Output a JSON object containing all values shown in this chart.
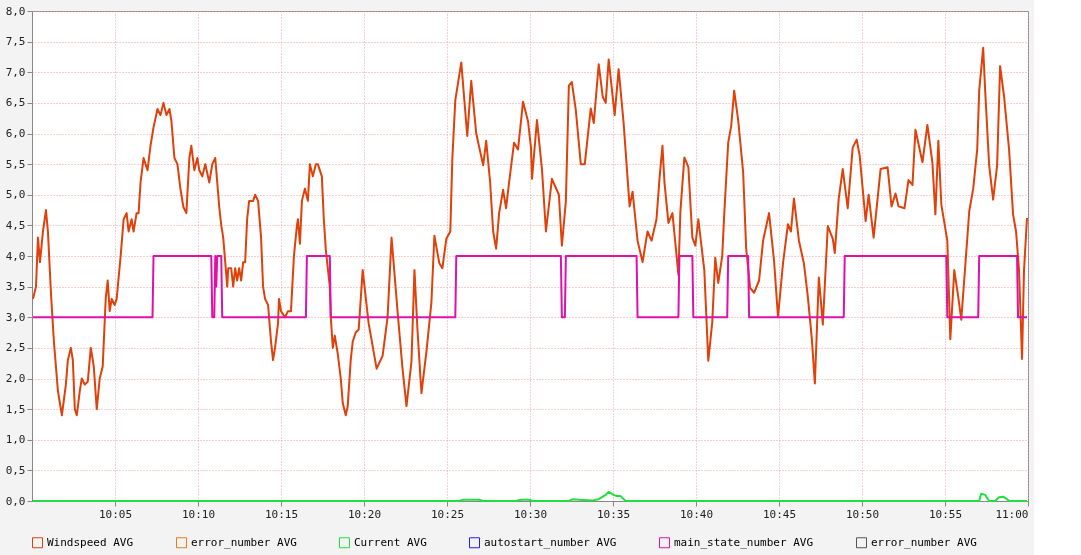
{
  "chart_data": {
    "type": "line",
    "xlim": [
      10.0,
      11.0
    ],
    "xticks": [
      {
        "value": 10.0833,
        "label": "10:05"
      },
      {
        "value": 10.1667,
        "label": "10:10"
      },
      {
        "value": 10.25,
        "label": "10:15"
      },
      {
        "value": 10.3333,
        "label": "10:20"
      },
      {
        "value": 10.4167,
        "label": "10:25"
      },
      {
        "value": 10.5,
        "label": "10:30"
      },
      {
        "value": 10.5833,
        "label": "10:35"
      },
      {
        "value": 10.6667,
        "label": "10:40"
      },
      {
        "value": 10.75,
        "label": "10:45"
      },
      {
        "value": 10.8333,
        "label": "10:50"
      },
      {
        "value": 10.9167,
        "label": "10:55"
      },
      {
        "value": 11.0,
        "label": "11:00"
      }
    ],
    "ylim": [
      0,
      8
    ],
    "yticks": [
      {
        "value": 0,
        "label": "0,0"
      },
      {
        "value": 0.5,
        "label": "0,5"
      },
      {
        "value": 1,
        "label": "1,0"
      },
      {
        "value": 1.5,
        "label": "1,5"
      },
      {
        "value": 2,
        "label": "2,0"
      },
      {
        "value": 2.5,
        "label": "2,5"
      },
      {
        "value": 3,
        "label": "3,0"
      },
      {
        "value": 3.5,
        "label": "3,5"
      },
      {
        "value": 4,
        "label": "4,0"
      },
      {
        "value": 4.5,
        "label": "4,5"
      },
      {
        "value": 5,
        "label": "5,0"
      },
      {
        "value": 5.5,
        "label": "5,5"
      },
      {
        "value": 6,
        "label": "6,0"
      },
      {
        "value": 6.5,
        "label": "6,5"
      },
      {
        "value": 7,
        "label": "7,0"
      },
      {
        "value": 7.5,
        "label": "7,5"
      },
      {
        "value": 8,
        "label": "8,0"
      }
    ],
    "grid": true,
    "legend": "bottom",
    "marker": "none",
    "line_style": "solid",
    "series": [
      {
        "name": "Windspeed AVG",
        "color": "#e0400a",
        "x": [
          10.001,
          10.004,
          10.006,
          10.008,
          10.011,
          10.014,
          10.016,
          10.019,
          10.022,
          10.026,
          10.03,
          10.034,
          10.036,
          10.039,
          10.041,
          10.043,
          10.045,
          10.048,
          10.05,
          10.053,
          10.056,
          10.059,
          10.062,
          10.065,
          10.068,
          10.071,
          10.074,
          10.076,
          10.078,
          10.08,
          10.083,
          10.085,
          10.089,
          10.092,
          10.095,
          10.097,
          10.1,
          10.102,
          10.105,
          10.107,
          10.109,
          10.112,
          10.116,
          10.119,
          10.122,
          10.126,
          10.129,
          10.132,
          10.135,
          10.138,
          10.14,
          10.143,
          10.146,
          10.149,
          10.152,
          10.155,
          10.158,
          10.16,
          10.163,
          10.166,
          10.168,
          10.171,
          10.174,
          10.178,
          10.181,
          10.184,
          10.186,
          10.188,
          10.19,
          10.192,
          10.194,
          10.196,
          10.197,
          10.2,
          10.202,
          10.204,
          10.206,
          10.208,
          10.21,
          10.212,
          10.214,
          10.216,
          10.218,
          10.222,
          10.224,
          10.227,
          10.23,
          10.232,
          10.234,
          10.237,
          10.24,
          10.242,
          10.244,
          10.247,
          10.248,
          10.25,
          10.254,
          10.257,
          10.26,
          10.263,
          10.266,
          10.267,
          10.269,
          10.271,
          10.274,
          10.277,
          10.279,
          10.282,
          10.285,
          10.287,
          10.291,
          10.293,
          10.295,
          10.299,
          10.3,
          10.302,
          10.304,
          10.307,
          10.31,
          10.312,
          10.315,
          10.317,
          10.32,
          10.322,
          10.325,
          10.328,
          10.332,
          10.338,
          10.346,
          10.352,
          10.357,
          10.361,
          10.363,
          10.367,
          10.372,
          10.376,
          10.381,
          10.384,
          10.387,
          10.391,
          10.396,
          10.401,
          10.404,
          10.409,
          10.412,
          10.416,
          10.42,
          10.422,
          10.425,
          10.431,
          10.437,
          10.441,
          10.446,
          10.453,
          10.456,
          10.46,
          10.463,
          10.466,
          10.469,
          10.473,
          10.476,
          10.479,
          10.484,
          10.488,
          10.493,
          10.498,
          10.501,
          10.502,
          10.507,
          10.512,
          10.516,
          10.522,
          10.529,
          10.532,
          10.536,
          10.539,
          10.542,
          10.546,
          10.551,
          10.555,
          10.561,
          10.564,
          10.569,
          10.573,
          10.576,
          10.579,
          10.585,
          10.589,
          10.594,
          10.598,
          10.6,
          10.603,
          10.608,
          10.613,
          10.618,
          10.622,
          10.627,
          10.63,
          10.633,
          10.635,
          10.639,
          10.643,
          10.646,
          10.649,
          10.651,
          10.655,
          10.659,
          10.663,
          10.666,
          10.669,
          10.675,
          10.679,
          10.683,
          10.686,
          10.689,
          10.693,
          10.695,
          10.699,
          10.702,
          10.705,
          10.709,
          10.714,
          10.717,
          10.721,
          10.725,
          10.73,
          10.734,
          10.74,
          10.745,
          10.749,
          10.754,
          10.759,
          10.762,
          10.765,
          10.77,
          10.775,
          10.779,
          10.783,
          10.786,
          10.79,
          10.794,
          10.799,
          10.804,
          10.806,
          10.81,
          10.814,
          10.819,
          10.824,
          10.828,
          10.831,
          10.834,
          10.837,
          10.84,
          10.845,
          10.852,
          10.859,
          10.863,
          10.867,
          10.87,
          10.876,
          10.88,
          10.884,
          10.887,
          10.894,
          10.899,
          10.904,
          10.907,
          10.91,
          10.913,
          10.919,
          10.922,
          10.926,
          10.93,
          10.933,
          10.939,
          10.941,
          10.945,
          10.949,
          10.951,
          10.955,
          10.957,
          10.961,
          10.965,
          10.969,
          10.972,
          10.976,
          10.981,
          10.985,
          10.988,
          10.991,
          10.994,
          10.996,
          10.999
        ],
        "values": [
          3.3,
          3.5,
          4.3,
          3.9,
          4.4,
          4.75,
          4.4,
          3.4,
          2.6,
          1.8,
          1.4,
          1.9,
          2.3,
          2.5,
          2.3,
          1.5,
          1.4,
          1.8,
          2.0,
          1.9,
          1.95,
          2.5,
          2.2,
          1.5,
          2.0,
          2.2,
          3.3,
          3.6,
          3.1,
          3.3,
          3.2,
          3.3,
          4.0,
          4.6,
          4.7,
          4.4,
          4.6,
          4.4,
          4.7,
          4.7,
          5.2,
          5.6,
          5.4,
          5.8,
          6.1,
          6.4,
          6.3,
          6.5,
          6.3,
          6.4,
          6.2,
          5.6,
          5.5,
          5.1,
          4.8,
          4.7,
          5.6,
          5.8,
          5.4,
          5.6,
          5.4,
          5.3,
          5.5,
          5.2,
          5.5,
          5.6,
          5.2,
          4.8,
          4.5,
          4.3,
          3.9,
          3.5,
          3.8,
          3.8,
          3.5,
          3.8,
          3.6,
          3.8,
          3.6,
          3.9,
          3.9,
          4.6,
          4.9,
          4.9,
          5.0,
          4.9,
          4.3,
          3.5,
          3.3,
          3.2,
          2.6,
          2.3,
          2.5,
          2.9,
          3.3,
          3.1,
          3.0,
          3.1,
          3.1,
          4.0,
          4.5,
          4.6,
          4.2,
          4.9,
          5.1,
          4.9,
          5.5,
          5.3,
          5.5,
          5.5,
          5.3,
          4.6,
          4.1,
          3.5,
          3.0,
          2.5,
          2.7,
          2.4,
          2.0,
          1.6,
          1.4,
          1.55,
          2.3,
          2.6,
          2.75,
          2.8,
          3.77,
          2.9,
          2.16,
          2.37,
          3.0,
          4.3,
          3.9,
          3.1,
          2.16,
          1.55,
          2.28,
          3.77,
          2.8,
          1.76,
          2.44,
          3.24,
          4.33,
          3.88,
          3.8,
          4.28,
          4.4,
          5.58,
          6.54,
          7.16,
          5.96,
          6.86,
          6.0,
          5.48,
          5.88,
          5.2,
          4.4,
          4.12,
          4.7,
          5.08,
          4.78,
          5.2,
          5.85,
          5.74,
          6.52,
          6.2,
          5.77,
          5.26,
          6.22,
          5.42,
          4.4,
          5.26,
          5.0,
          4.17,
          4.89,
          6.78,
          6.84,
          6.38,
          5.5,
          5.5,
          6.41,
          6.17,
          7.13,
          6.6,
          6.5,
          7.21,
          6.3,
          7.05,
          6.17,
          5.26,
          4.81,
          5.05,
          4.25,
          3.9,
          4.4,
          4.25,
          4.6,
          5.26,
          5.8,
          5.2,
          4.54,
          4.7,
          4.2,
          3.69,
          4.73,
          5.61,
          5.45,
          4.3,
          4.17,
          4.6,
          3.77,
          2.29,
          2.92,
          3.97,
          3.56,
          4.0,
          4.68,
          5.85,
          6.12,
          6.7,
          6.22,
          5.37,
          4.13,
          3.48,
          3.4,
          3.6,
          4.25,
          4.7,
          3.93,
          3.0,
          3.88,
          4.52,
          4.4,
          4.94,
          4.25,
          3.88,
          3.33,
          2.64,
          1.92,
          3.65,
          2.88,
          4.49,
          4.28,
          4.05,
          4.94,
          5.42,
          4.78,
          5.77,
          5.9,
          5.64,
          5.1,
          4.57,
          5.0,
          4.3,
          5.42,
          5.45,
          4.81,
          5.02,
          4.81,
          4.78,
          5.24,
          5.16,
          6.06,
          5.53,
          6.14,
          5.53,
          4.68,
          5.88,
          4.84,
          4.25,
          2.64,
          3.77,
          3.33,
          2.96,
          4.28,
          4.73,
          5.1,
          5.74,
          6.7,
          7.4,
          6.7,
          5.48,
          4.92,
          5.48,
          7.1,
          6.6,
          5.74,
          4.68,
          4.4,
          3.77,
          2.32,
          3.77,
          4.62
        ]
      },
      {
        "name": "error_number AVG",
        "color": "#f07c10"
      },
      {
        "name": "Current AVG",
        "color": "#20e040",
        "x": [
          10.001,
          10.429,
          10.433,
          10.449,
          10.453,
          10.486,
          10.491,
          10.499,
          10.503,
          10.539,
          10.543,
          10.549,
          10.563,
          10.569,
          10.576,
          10.579,
          10.584,
          10.587,
          10.591,
          10.596,
          10.951,
          10.953,
          10.957,
          10.961,
          10.967,
          10.971,
          10.975,
          10.979,
          10.981,
          10.999
        ],
        "values": [
          0,
          0,
          0.02,
          0.02,
          0,
          0,
          0.02,
          0.02,
          0,
          0,
          0.03,
          0.02,
          0.01,
          0.03,
          0.1,
          0.15,
          0.1,
          0.08,
          0.08,
          0,
          0,
          0.12,
          0.1,
          0,
          0,
          0.06,
          0.07,
          0.03,
          0,
          0
        ]
      },
      {
        "name": "autostart_number AVG",
        "color": "#2020e8"
      },
      {
        "name": "main_state_number AVG",
        "color": "#e010a8",
        "x": [
          10.001,
          10.121,
          10.122,
          10.18,
          10.181,
          10.183,
          10.184,
          10.185,
          10.186,
          10.19,
          10.191,
          10.275,
          10.276,
          10.299,
          10.3,
          10.425,
          10.426,
          10.531,
          10.532,
          10.535,
          10.536,
          10.607,
          10.608,
          10.649,
          10.65,
          10.663,
          10.664,
          10.698,
          10.699,
          10.719,
          10.72,
          10.815,
          10.816,
          10.918,
          10.919,
          10.95,
          10.951,
          10.989,
          10.99,
          10.999
        ],
        "values": [
          3,
          3,
          4,
          4,
          3,
          3,
          4,
          3.5,
          4,
          4,
          3,
          3,
          4,
          4,
          3,
          3,
          4,
          4,
          3,
          3,
          4,
          4,
          3,
          3,
          4,
          4,
          3,
          3,
          4,
          4,
          3,
          3,
          4,
          4,
          3,
          3,
          4,
          4,
          3,
          3
        ]
      },
      {
        "name": "error_number AVG",
        "color": "#555555"
      }
    ]
  }
}
